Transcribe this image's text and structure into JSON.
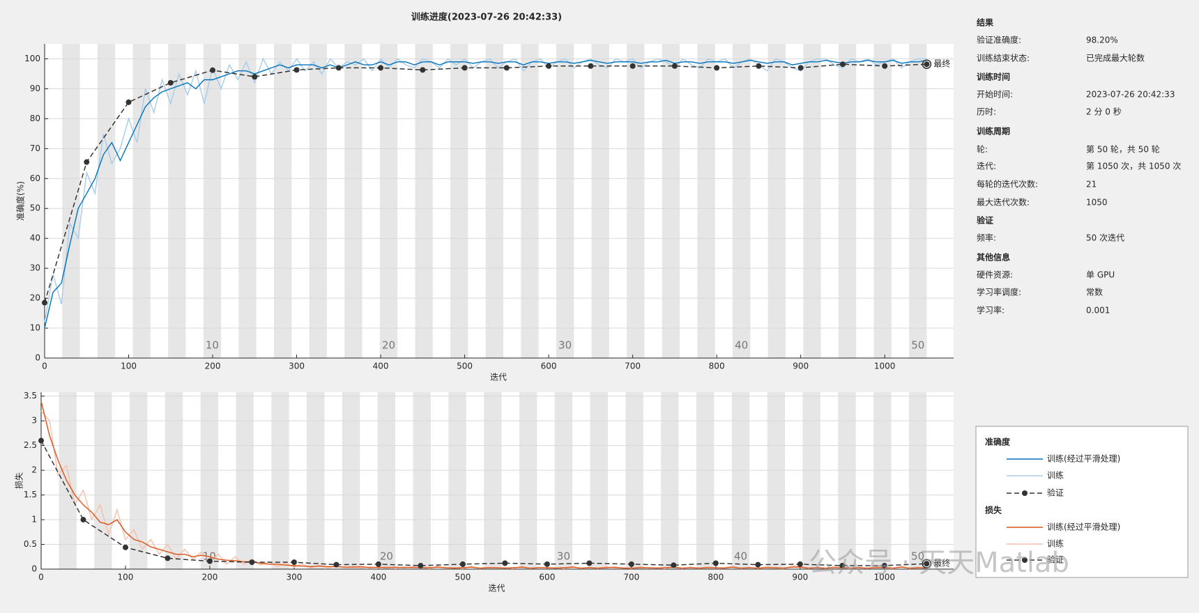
{
  "title": "训练进度(2023-07-26 20:42:33)",
  "watermark": "公众号 · 天天Matlab",
  "chart_data": [
    {
      "type": "line",
      "y_label": "准确度(%)",
      "x_label": "迭代",
      "legend_title": "准确度",
      "final_label": "最终",
      "xlim": [
        0,
        1082
      ],
      "ylim": [
        0,
        105
      ],
      "xticks": [
        0,
        100,
        200,
        300,
        400,
        500,
        600,
        700,
        800,
        900,
        1000
      ],
      "yticks": [
        0,
        10,
        20,
        30,
        40,
        50,
        60,
        70,
        80,
        90,
        100
      ],
      "grid": true,
      "epoch_ticks": [
        10,
        20,
        30,
        40,
        50
      ],
      "x": [
        0,
        10,
        20,
        30,
        40,
        50,
        60,
        70,
        80,
        90,
        100,
        110,
        120,
        130,
        140,
        150,
        160,
        170,
        180,
        190,
        200,
        210,
        220,
        230,
        240,
        250,
        260,
        270,
        280,
        290,
        300,
        310,
        320,
        330,
        340,
        350,
        360,
        370,
        380,
        390,
        400,
        410,
        420,
        430,
        440,
        450,
        460,
        470,
        480,
        490,
        500,
        510,
        520,
        530,
        540,
        550,
        560,
        570,
        580,
        590,
        600,
        610,
        620,
        630,
        640,
        650,
        660,
        670,
        680,
        690,
        700,
        710,
        720,
        730,
        740,
        750,
        760,
        770,
        780,
        790,
        800,
        810,
        820,
        830,
        840,
        850,
        860,
        870,
        880,
        890,
        900,
        910,
        920,
        930,
        940,
        950,
        960,
        970,
        980,
        990,
        1000,
        1010,
        1020,
        1030,
        1040,
        1050
      ],
      "series": [
        {
          "name": "训练(经过平滑处理)",
          "color": "#0072bd",
          "values": [
            10,
            22,
            25,
            38,
            50,
            55,
            60,
            68,
            72,
            66,
            72,
            78,
            84,
            87,
            89,
            90,
            91,
            92,
            90,
            93,
            93,
            94,
            95,
            96,
            96,
            95,
            96,
            97,
            98,
            97,
            98,
            98,
            98,
            97,
            98,
            97,
            98,
            99,
            98,
            98,
            99,
            98,
            99,
            99,
            98,
            99,
            99,
            98,
            99,
            99,
            99,
            98.5,
            99,
            99,
            98.5,
            99,
            99,
            98,
            99,
            99,
            98.5,
            99,
            99,
            98.5,
            99,
            99.5,
            99,
            98.5,
            99,
            99,
            99,
            98.5,
            99,
            99,
            99.5,
            98.5,
            99,
            99,
            98.5,
            99,
            99,
            99,
            98.5,
            99,
            99.5,
            99,
            98.5,
            99,
            99,
            98,
            98.5,
            99,
            99,
            99.5,
            99,
            98.5,
            99,
            99,
            99.5,
            99,
            99,
            99.5,
            98.5,
            99,
            99,
            99.5
          ]
        },
        {
          "name": "训练",
          "color": "#a6cce8",
          "values": [
            12,
            28,
            18,
            45,
            40,
            62,
            55,
            75,
            65,
            70,
            80,
            72,
            90,
            82,
            93,
            85,
            95,
            88,
            96,
            85,
            97,
            90,
            98,
            93,
            99,
            92,
            100,
            95,
            99,
            96,
            100,
            96,
            99,
            95,
            100,
            97,
            99,
            98,
            100,
            96,
            100,
            97,
            100,
            98,
            97,
            100,
            99,
            97,
            100,
            98,
            100,
            97,
            99,
            100,
            97,
            99,
            100,
            96,
            99,
            100,
            97,
            99,
            100,
            97,
            99,
            100,
            98,
            97,
            100,
            99,
            100,
            97,
            99,
            100,
            99,
            97,
            100,
            98,
            97,
            100,
            99,
            100,
            97,
            99,
            100,
            98,
            96,
            100,
            99,
            97,
            96,
            99,
            100,
            100,
            98,
            97,
            100,
            99,
            100,
            98,
            99,
            100,
            97,
            99,
            100,
            100
          ]
        },
        {
          "name": "验证",
          "color": "#333333",
          "dashed": true,
          "marker": true,
          "x": [
            0,
            50,
            100,
            150,
            200,
            250,
            300,
            350,
            400,
            450,
            500,
            550,
            600,
            650,
            700,
            750,
            800,
            850,
            900,
            950,
            1000,
            1050
          ],
          "values": [
            18.5,
            65.5,
            85.5,
            92,
            96.2,
            94,
            96.3,
            97,
            97,
            96.3,
            97,
            97,
            97.6,
            97.6,
            97.6,
            97.6,
            97,
            97.6,
            97,
            98.2,
            97.6,
            98.2
          ]
        }
      ]
    },
    {
      "type": "line",
      "y_label": "损失",
      "x_label": "迭代",
      "legend_title": "损失",
      "final_label": "最终",
      "xlim": [
        0,
        1082
      ],
      "ylim": [
        0,
        3.58
      ],
      "xticks": [
        0,
        100,
        200,
        300,
        400,
        500,
        600,
        700,
        800,
        900,
        1000
      ],
      "yticks": [
        0,
        0.5,
        1,
        1.5,
        2,
        2.5,
        3,
        3.5
      ],
      "grid": true,
      "epoch_ticks": [
        10,
        20,
        30,
        40,
        50
      ],
      "x": [
        0,
        10,
        20,
        30,
        40,
        50,
        60,
        70,
        80,
        90,
        100,
        110,
        120,
        130,
        140,
        150,
        160,
        170,
        180,
        190,
        200,
        210,
        220,
        230,
        240,
        250,
        260,
        270,
        280,
        290,
        300,
        310,
        320,
        330,
        340,
        350,
        360,
        370,
        380,
        390,
        400,
        410,
        420,
        430,
        440,
        450,
        460,
        470,
        480,
        490,
        500,
        510,
        520,
        530,
        540,
        550,
        560,
        570,
        580,
        590,
        600,
        610,
        620,
        630,
        640,
        650,
        660,
        670,
        680,
        690,
        700,
        710,
        720,
        730,
        740,
        750,
        760,
        770,
        780,
        790,
        800,
        810,
        820,
        830,
        840,
        850,
        860,
        870,
        880,
        890,
        900,
        910,
        920,
        930,
        940,
        950,
        960,
        970,
        980,
        990,
        1000,
        1010,
        1020,
        1030,
        1040,
        1050
      ],
      "series": [
        {
          "name": "训练(经过平滑处理)",
          "color": "#d95319",
          "values": [
            3.4,
            2.7,
            2.2,
            1.8,
            1.5,
            1.3,
            1.15,
            0.95,
            0.9,
            1.0,
            0.75,
            0.6,
            0.55,
            0.45,
            0.4,
            0.35,
            0.3,
            0.3,
            0.25,
            0.28,
            0.25,
            0.2,
            0.18,
            0.17,
            0.15,
            0.15,
            0.12,
            0.1,
            0.1,
            0.08,
            0.07,
            0.06,
            0.05,
            0.06,
            0.05,
            0.05,
            0.04,
            0.04,
            0.05,
            0.03,
            0.04,
            0.03,
            0.04,
            0.03,
            0.04,
            0.03,
            0.03,
            0.04,
            0.03,
            0.02,
            0.03,
            0.04,
            0.02,
            0.03,
            0.03,
            0.02,
            0.03,
            0.04,
            0.02,
            0.03,
            0.03,
            0.02,
            0.03,
            0.04,
            0.02,
            0.03,
            0.02,
            0.03,
            0.04,
            0.02,
            0.02,
            0.03,
            0.03,
            0.02,
            0.03,
            0.04,
            0.02,
            0.03,
            0.02,
            0.03,
            0.03,
            0.02,
            0.04,
            0.02,
            0.03,
            0.02,
            0.03,
            0.03,
            0.02,
            0.04,
            0.04,
            0.02,
            0.03,
            0.02,
            0.03,
            0.03,
            0.02,
            0.03,
            0.02,
            0.03,
            0.03,
            0.02,
            0.04,
            0.02,
            0.03,
            0.02
          ]
        },
        {
          "name": "训练",
          "color": "#f5bfa8",
          "values": [
            3.2,
            3.0,
            1.9,
            2.1,
            1.3,
            1.6,
            1.0,
            1.3,
            0.7,
            1.2,
            0.6,
            0.8,
            0.4,
            0.6,
            0.3,
            0.5,
            0.2,
            0.4,
            0.2,
            0.35,
            0.15,
            0.3,
            0.1,
            0.25,
            0.1,
            0.2,
            0.08,
            0.15,
            0.05,
            0.12,
            0.04,
            0.1,
            0.03,
            0.08,
            0.02,
            0.07,
            0.03,
            0.06,
            0.02,
            0.05,
            0.02,
            0.06,
            0.01,
            0.05,
            0.02,
            0.04,
            0.01,
            0.06,
            0.02,
            0.03,
            0.01,
            0.06,
            0.01,
            0.04,
            0.02,
            0.03,
            0.01,
            0.06,
            0.01,
            0.04,
            0.02,
            0.03,
            0.01,
            0.06,
            0.01,
            0.04,
            0.01,
            0.05,
            0.02,
            0.03,
            0.01,
            0.05,
            0.02,
            0.03,
            0.01,
            0.06,
            0.01,
            0.04,
            0.01,
            0.05,
            0.02,
            0.03,
            0.06,
            0.01,
            0.04,
            0.01,
            0.05,
            0.02,
            0.01,
            0.06,
            0.06,
            0.01,
            0.04,
            0.01,
            0.05,
            0.02,
            0.01,
            0.04,
            0.01,
            0.05,
            0.02,
            0.01,
            0.06,
            0.01,
            0.04,
            0.01
          ]
        },
        {
          "name": "验证",
          "color": "#333333",
          "dashed": true,
          "marker": true,
          "x": [
            0,
            50,
            100,
            150,
            200,
            250,
            300,
            350,
            400,
            450,
            500,
            550,
            600,
            650,
            700,
            750,
            800,
            850,
            900,
            950,
            1000,
            1050
          ],
          "values": [
            2.6,
            1.0,
            0.44,
            0.22,
            0.16,
            0.14,
            0.14,
            0.09,
            0.1,
            0.07,
            0.1,
            0.12,
            0.1,
            0.12,
            0.1,
            0.08,
            0.12,
            0.09,
            0.1,
            0.07,
            0.07,
            0.11
          ]
        }
      ]
    }
  ],
  "info_panel": {
    "sections": [
      {
        "title": "结果",
        "rows": [
          {
            "label": "验证准确度:",
            "value": "98.20%"
          },
          {
            "label": "训练结束状态:",
            "value": "已完成最大轮数"
          }
        ]
      },
      {
        "title": "训练时间",
        "rows": [
          {
            "label": "开始时间:",
            "value": "2023-07-26 20:42:33"
          },
          {
            "label": "历时:",
            "value": "2 分 0 秒"
          }
        ]
      },
      {
        "title": "训练周期",
        "rows": [
          {
            "label": "轮:",
            "value": "第 50 轮，共 50 轮"
          },
          {
            "label": "迭代:",
            "value": "第 1050 次，共 1050 次"
          },
          {
            "label": "每轮的迭代次数:",
            "value": "21"
          },
          {
            "label": "最大迭代次数:",
            "value": "1050"
          }
        ]
      },
      {
        "title": "验证",
        "rows": [
          {
            "label": "频率:",
            "value": "50 次迭代"
          }
        ]
      },
      {
        "title": "其他信息",
        "rows": [
          {
            "label": "硬件资源:",
            "value": "单 GPU"
          },
          {
            "label": "学习率调度:",
            "value": "常数"
          },
          {
            "label": "学习率:",
            "value": "0.001"
          }
        ]
      }
    ]
  }
}
